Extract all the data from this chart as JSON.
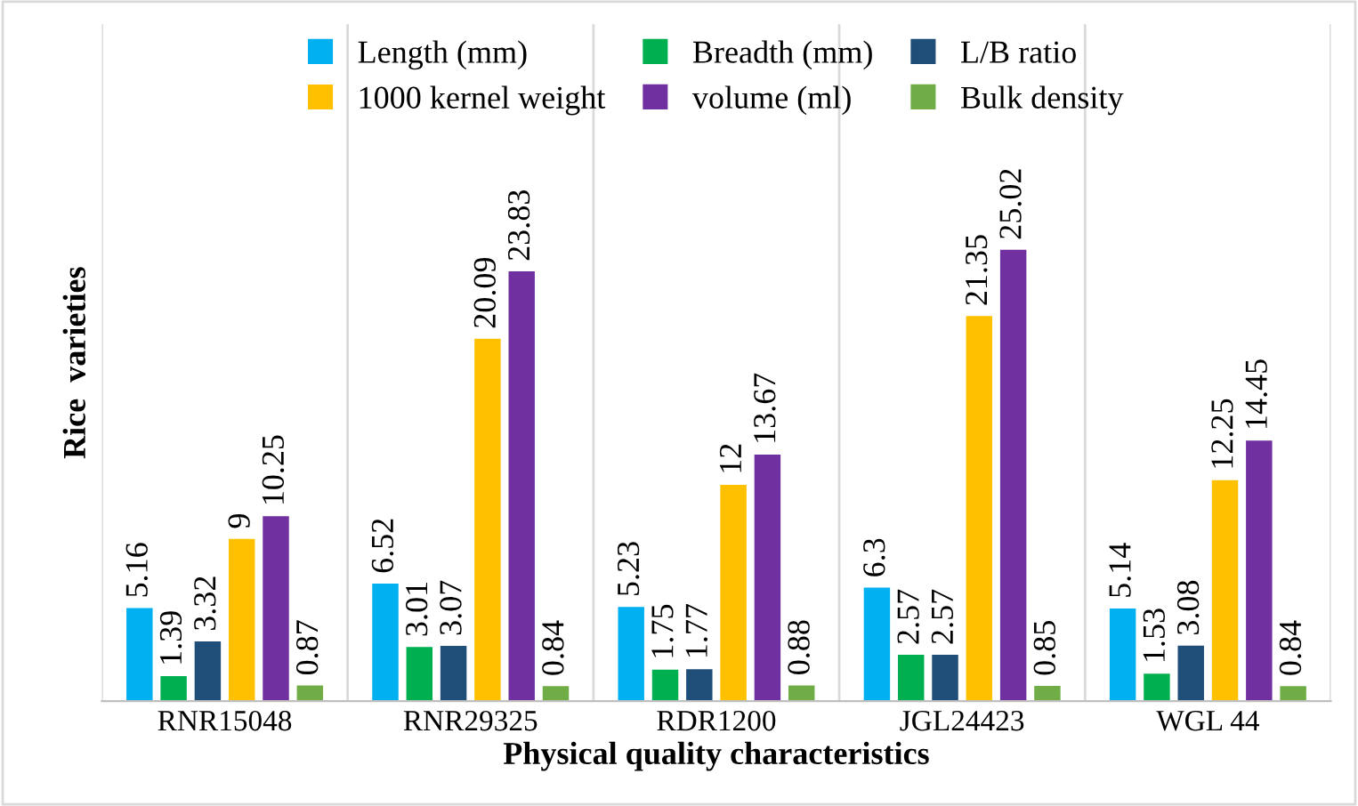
{
  "chart_data": {
    "type": "bar",
    "xlabel": "Physical quality characteristics",
    "ylabel": "Rice  varieties",
    "categories": [
      "RNR15048",
      "RNR29325",
      "RDR1200",
      "JGL24423",
      "WGL 44"
    ],
    "series": [
      {
        "name": "Length (mm)",
        "color": "#00b0f0",
        "values": [
          5.16,
          6.52,
          5.23,
          6.3,
          5.14
        ]
      },
      {
        "name": "Breadth (mm)",
        "color": "#00b050",
        "values": [
          1.39,
          3.01,
          1.75,
          2.57,
          1.53
        ]
      },
      {
        "name": "L/B ratio",
        "color": "#1f4e79",
        "values": [
          3.32,
          3.07,
          1.77,
          2.57,
          3.08
        ]
      },
      {
        "name": "1000 kernel weight",
        "color": "#ffc000",
        "values": [
          9,
          20.09,
          12,
          21.35,
          12.25
        ]
      },
      {
        "name": "volume (ml)",
        "color": "#7030a0",
        "values": [
          10.25,
          23.83,
          13.67,
          25.02,
          14.45
        ]
      },
      {
        "name": "Bulk density",
        "color": "#70ad47",
        "values": [
          0.87,
          0.84,
          0.88,
          0.85,
          0.84
        ]
      }
    ],
    "data_labels": true,
    "grid": "x",
    "legend": "top"
  }
}
